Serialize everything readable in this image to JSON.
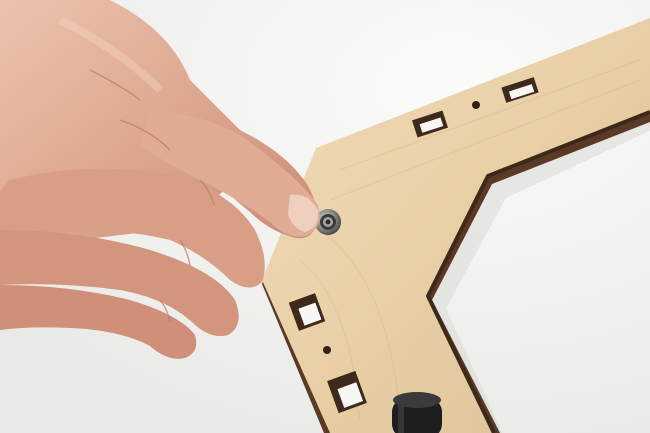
{
  "scene": {
    "subject": "hand-pressing-bearing-into-plywood-frame",
    "colors": {
      "background": "#f4f4f2",
      "plywood_face": "#ead3ad",
      "plywood_edge": "#5a3a26",
      "skin": "#e2b29a",
      "skin_shadow": "#c98a74",
      "bearing": "#9a9a96",
      "knob": "#1e1e1e"
    }
  }
}
